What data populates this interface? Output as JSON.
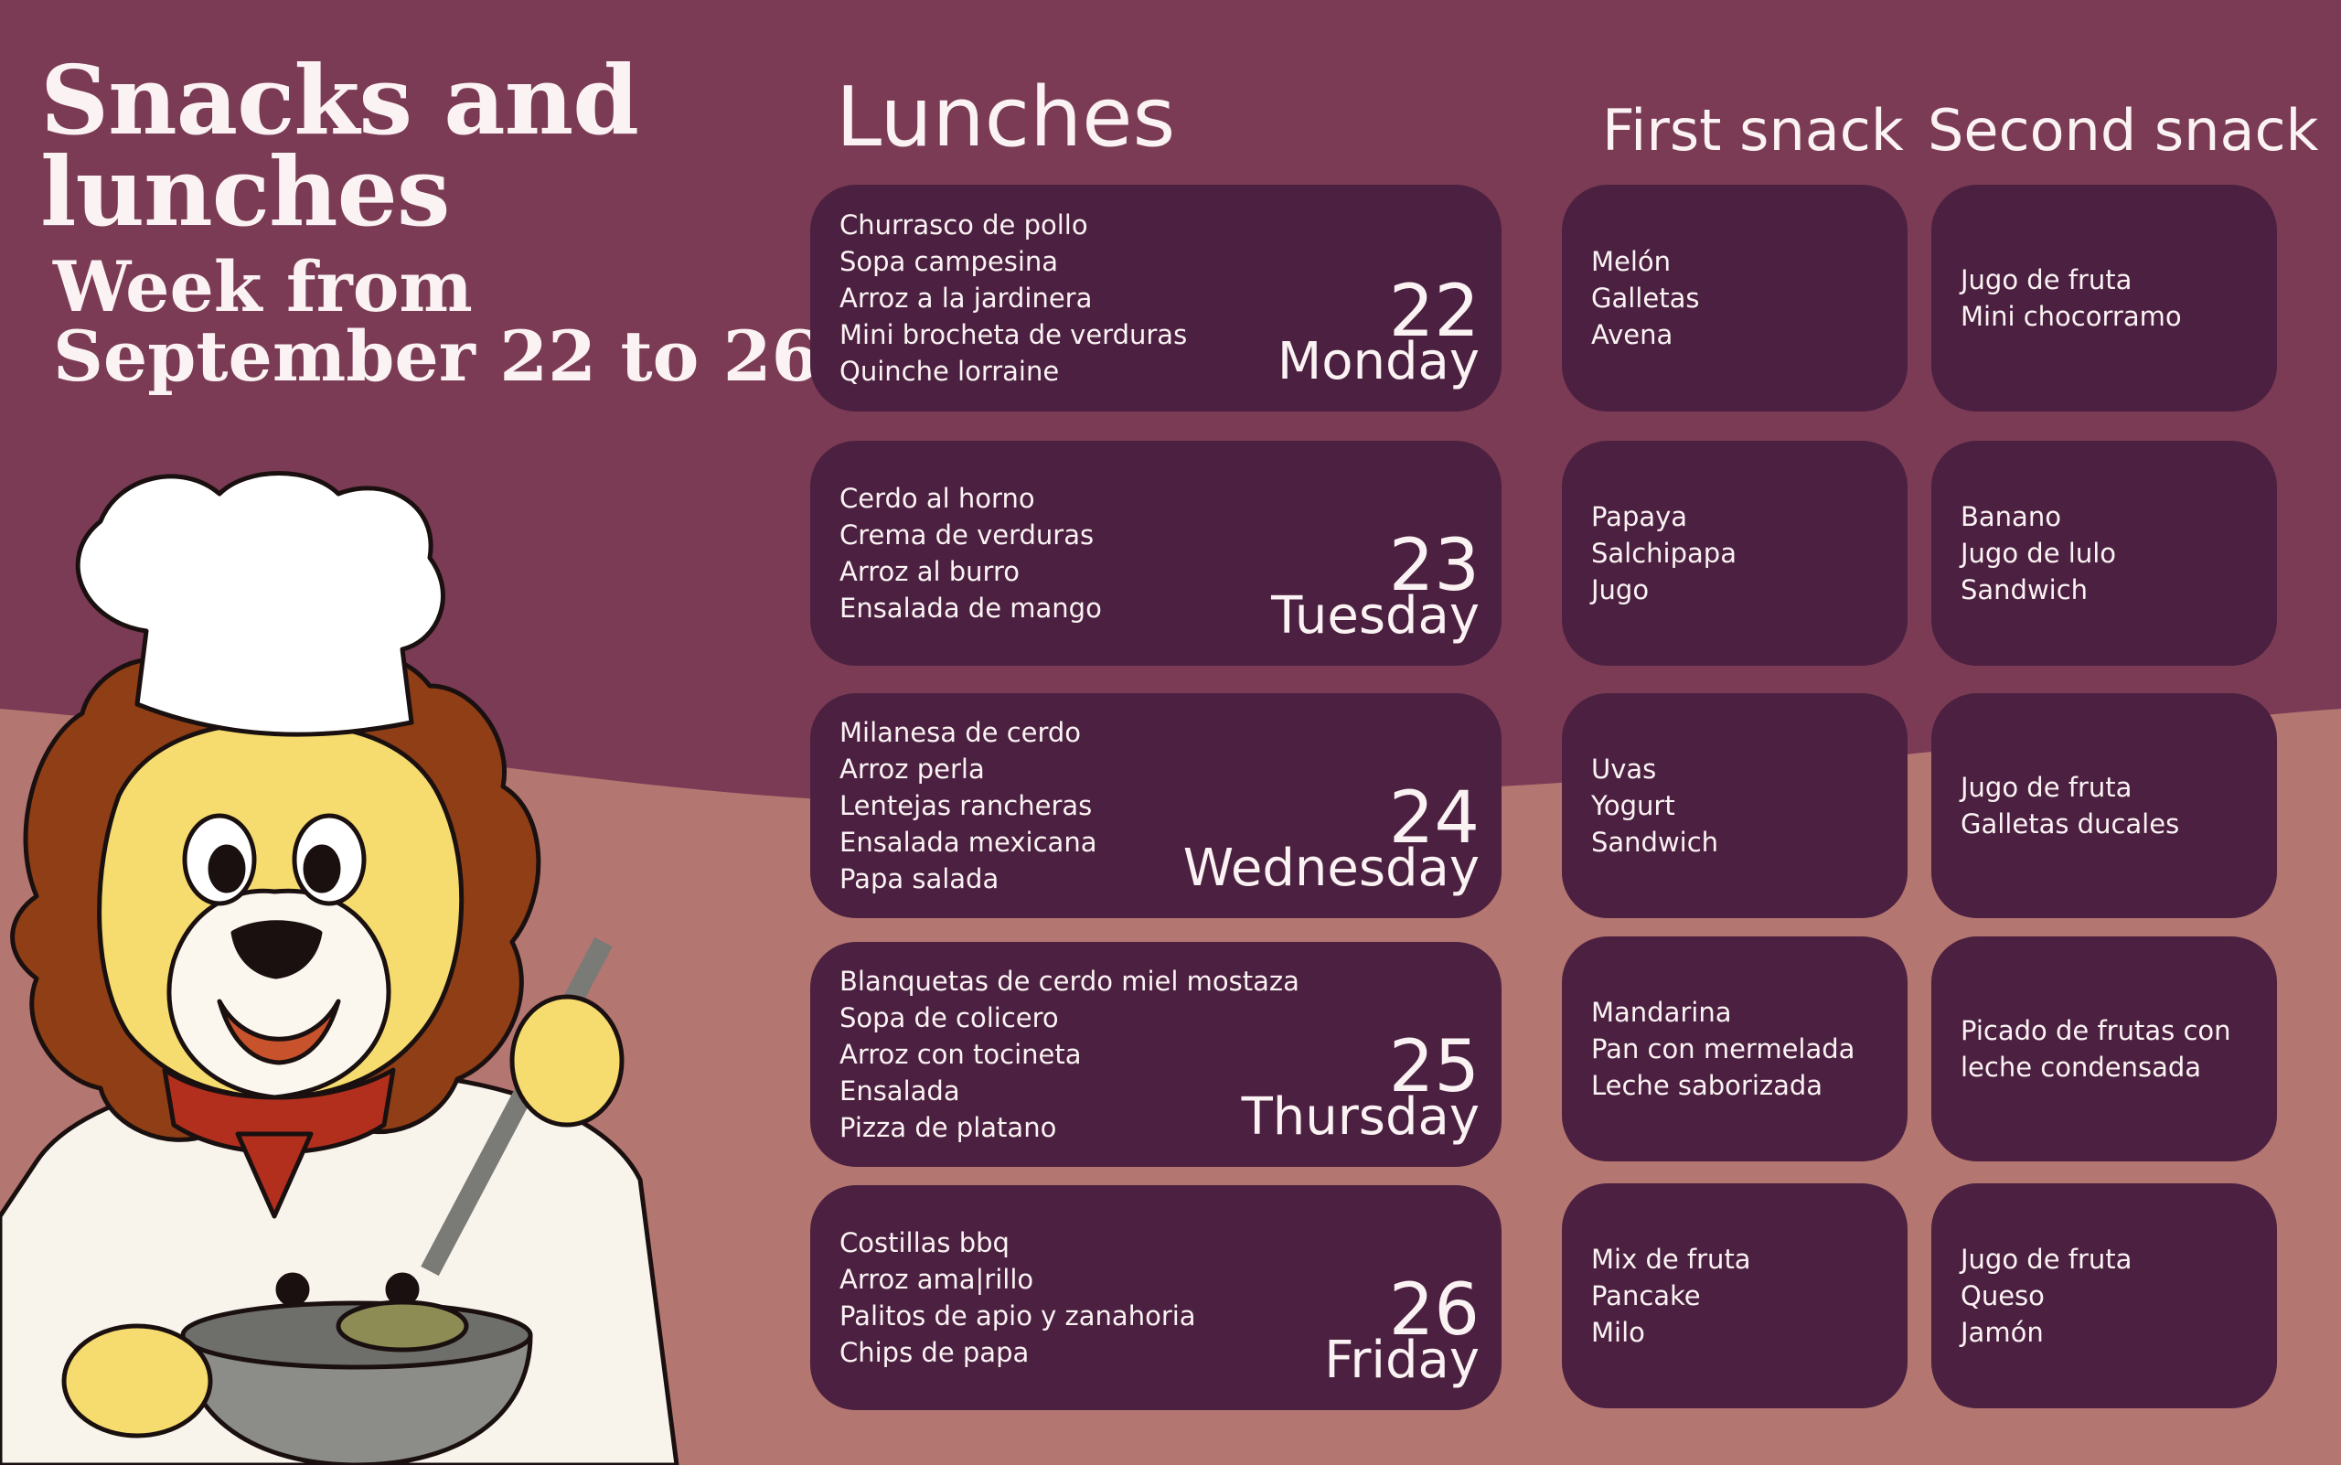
{
  "title": {
    "line1": "Snacks and",
    "line2": "lunches",
    "line3": "Week from",
    "line4": "September 22 to 26"
  },
  "headers": {
    "lunches": "Lunches",
    "first_snack": "First snack",
    "second_snack": "Second snack"
  },
  "colors": {
    "top_background": "#7b3b55",
    "bottom_background": "#b47670",
    "card": "#4c2040",
    "text": "#fbf3f3"
  },
  "illustration": "chef-lion-mascot",
  "days": [
    {
      "number": "22",
      "name": "Monday",
      "lunch": [
        "Churrasco de pollo",
        "Sopa campesina",
        "Arroz a la jardinera",
        "Mini brocheta de verduras",
        "Quinche lorraine"
      ],
      "first_snack": [
        "Melón",
        "Galletas",
        "Avena"
      ],
      "second_snack": [
        "Jugo de fruta",
        "Mini chocorramo"
      ]
    },
    {
      "number": "23",
      "name": "Tuesday",
      "lunch": [
        "Cerdo al horno",
        "Crema de verduras",
        "Arroz al burro",
        "Ensalada de mango"
      ],
      "first_snack": [
        "Papaya",
        "Salchipapa",
        "Jugo"
      ],
      "second_snack": [
        "Banano",
        "Jugo de lulo",
        "Sandwich"
      ]
    },
    {
      "number": "24",
      "name": "Wednesday",
      "lunch": [
        "Milanesa de cerdo",
        "Arroz perla",
        "Lentejas rancheras",
        "Ensalada mexicana",
        "Papa salada"
      ],
      "first_snack": [
        "Uvas",
        "Yogurt",
        "Sandwich"
      ],
      "second_snack": [
        "Jugo de fruta",
        "Galletas ducales"
      ]
    },
    {
      "number": "25",
      "name": "Thursday",
      "lunch": [
        "Blanquetas de cerdo miel mostaza",
        "Sopa de colicero",
        "Arroz con tocineta",
        "Ensalada",
        "Pizza de platano"
      ],
      "first_snack": [
        "Mandarina",
        "Pan con mermelada",
        "Leche saborizada"
      ],
      "second_snack": [
        "Picado de frutas con",
        "leche condensada"
      ]
    },
    {
      "number": "26",
      "name": "Friday",
      "lunch": [
        "Costillas bbq",
        "Arroz ama|rillo",
        "Palitos de apio y zanahoria",
        "Chips de papa"
      ],
      "first_snack": [
        "Mix de fruta",
        "Pancake",
        "Milo"
      ],
      "second_snack": [
        "Jugo de fruta",
        "Queso",
        "Jamón"
      ]
    }
  ]
}
